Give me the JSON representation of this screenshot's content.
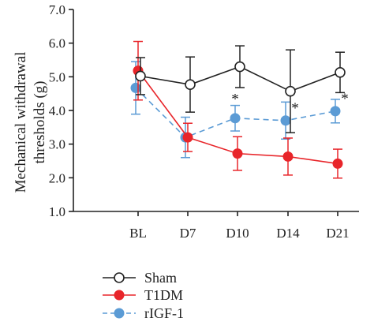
{
  "chart_data": {
    "type": "line",
    "title": "",
    "ylabel": [
      "Mechanical withdrawal",
      "thresholds (g)"
    ],
    "xlabel": "",
    "categories": [
      "BL",
      "D7",
      "D10",
      "D14",
      "D21"
    ],
    "ylim": [
      1.0,
      7.0
    ],
    "yticks": [
      "1.0",
      "2.0",
      "3.0",
      "4.0",
      "5.0",
      "6.0",
      "7.0"
    ],
    "grid": false,
    "legend_position": "bottom-left",
    "series": [
      {
        "name": "Sham",
        "color": "#222222",
        "marker": "open-circle",
        "line_style": "solid",
        "values": [
          5.02,
          4.77,
          5.3,
          4.57,
          5.13
        ],
        "errors": [
          0.55,
          0.82,
          0.62,
          1.23,
          0.6
        ]
      },
      {
        "name": "T1DM",
        "color": "#e8252a",
        "marker": "filled-circle",
        "line_style": "solid",
        "values": [
          5.18,
          3.2,
          2.72,
          2.63,
          2.42
        ],
        "errors": [
          0.87,
          0.42,
          0.5,
          0.55,
          0.43
        ]
      },
      {
        "name": "rIGF-1",
        "color": "#5b9bd5",
        "marker": "filled-circle",
        "line_style": "dashed",
        "values": [
          4.67,
          3.2,
          3.77,
          3.7,
          3.98
        ],
        "errors": [
          0.78,
          0.6,
          0.38,
          0.55,
          0.35
        ]
      }
    ],
    "annotations": [
      {
        "text": "*",
        "category": "D10",
        "series": "rIGF-1"
      },
      {
        "text": "*",
        "category": "D14",
        "series": "rIGF-1"
      },
      {
        "text": "*",
        "category": "D21",
        "series": "rIGF-1"
      }
    ]
  }
}
